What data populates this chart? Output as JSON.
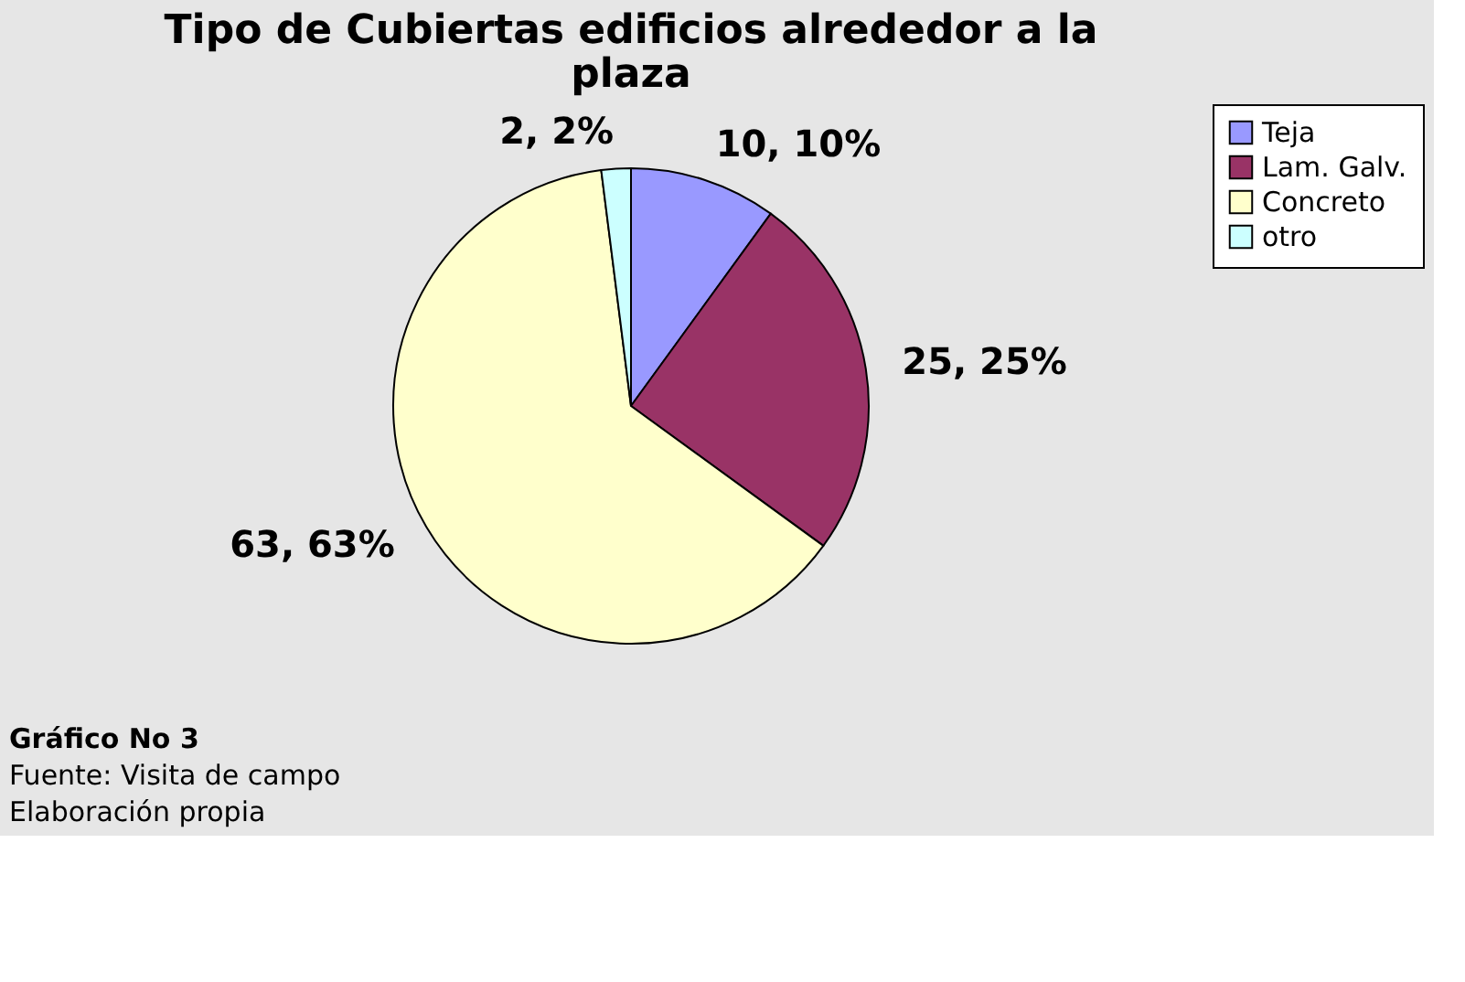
{
  "chart_data": {
    "type": "pie",
    "title": [
      "Tipo de Cubiertas edificios alrededor a la",
      "plaza"
    ],
    "categories": [
      "Teja",
      "Lam. Galv.",
      "Concreto",
      "otro"
    ],
    "values": [
      10,
      25,
      63,
      2
    ],
    "colors": [
      "#9999ff",
      "#993366",
      "#ffffcc",
      "#ccffff"
    ],
    "value_labels": [
      "10, 10%",
      "25, 25%",
      "63, 63%",
      "2, 2%"
    ],
    "legend": "right",
    "annotations": [
      "Gráfico No 3",
      "Fuente: Visita de campo",
      "Elaboración propia"
    ]
  }
}
